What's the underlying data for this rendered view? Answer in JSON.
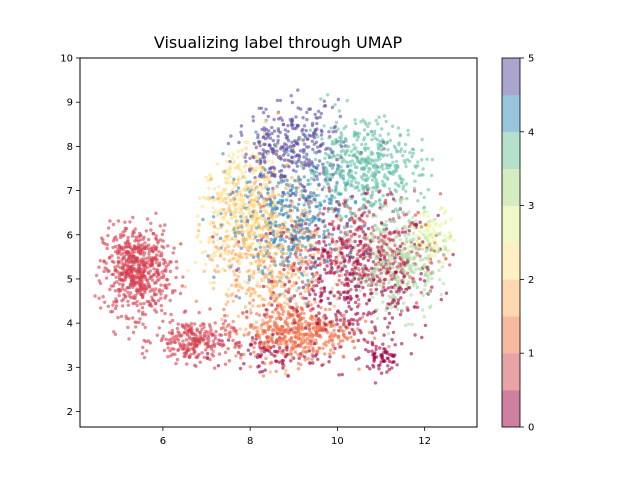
{
  "chart_data": {
    "type": "scatter",
    "title": "Visualizing label through UMAP",
    "xlabel": "",
    "ylabel": "",
    "xlim": [
      4.1,
      13.2
    ],
    "ylim": [
      1.65,
      10.0
    ],
    "xticks": [
      6,
      8,
      10,
      12
    ],
    "yticks": [
      2,
      3,
      4,
      5,
      6,
      7,
      8,
      9,
      10
    ],
    "grid": false,
    "marker_alpha": 0.6,
    "colorbar": {
      "colormap": "Spectral",
      "range": [
        0,
        5
      ],
      "ticks": [
        0,
        1,
        2,
        3,
        4,
        5
      ],
      "levels": 10,
      "band_colors": [
        "#cf7fa0",
        "#e8a3a6",
        "#f5baa0",
        "#fdd7b0",
        "#fdf0c3",
        "#f1f7c6",
        "#d4ecc0",
        "#b5e0cc",
        "#97c5db",
        "#aaa5cf"
      ]
    },
    "clusters": [
      {
        "label": 0,
        "color": "#9e0142",
        "center": [
          10.4,
          5.0
        ],
        "spread": [
          1.7,
          1.5
        ],
        "count": 500
      },
      {
        "label": 0,
        "color": "#9e0142",
        "center": [
          11.0,
          3.2
        ],
        "spread": [
          0.4,
          0.25
        ],
        "count": 60
      },
      {
        "label": 0,
        "color": "#9e0142",
        "center": [
          8.4,
          3.3
        ],
        "spread": [
          1.2,
          0.5
        ],
        "count": 80
      },
      {
        "label": 1,
        "color": "#d53e4f",
        "center": [
          5.4,
          5.2
        ],
        "spread": [
          0.7,
          0.9
        ],
        "count": 600
      },
      {
        "label": 1,
        "color": "#d53e4f",
        "center": [
          6.7,
          3.6
        ],
        "spread": [
          0.8,
          0.45
        ],
        "count": 250
      },
      {
        "label": 1,
        "color": "#d53e4f",
        "center": [
          10.6,
          5.6
        ],
        "spread": [
          1.6,
          1.2
        ],
        "count": 300
      },
      {
        "label": 2,
        "color": "#f46d43",
        "center": [
          9.0,
          3.8
        ],
        "spread": [
          1.2,
          0.6
        ],
        "count": 450
      },
      {
        "label": 2,
        "color": "#fdae61",
        "center": [
          8.4,
          5.6
        ],
        "spread": [
          1.2,
          1.6
        ],
        "count": 500
      },
      {
        "label": 3,
        "color": "#fee08b",
        "center": [
          7.9,
          6.6
        ],
        "spread": [
          1.0,
          1.3
        ],
        "count": 450
      },
      {
        "label": 3,
        "color": "#abdda4",
        "center": [
          11.4,
          5.3
        ],
        "spread": [
          1.0,
          1.0
        ],
        "count": 350
      },
      {
        "label": 3,
        "color": "#e6f598",
        "center": [
          12.2,
          6.0
        ],
        "spread": [
          0.5,
          0.5
        ],
        "count": 100
      },
      {
        "label": 4,
        "color": "#66c2a5",
        "center": [
          10.6,
          7.5
        ],
        "spread": [
          1.2,
          1.0
        ],
        "count": 500
      },
      {
        "label": 4,
        "color": "#3288bd",
        "center": [
          9.0,
          6.3
        ],
        "spread": [
          1.4,
          1.3
        ],
        "count": 400
      },
      {
        "label": 5,
        "color": "#5e4fa2",
        "center": [
          8.9,
          7.9
        ],
        "spread": [
          1.1,
          1.0
        ],
        "count": 350
      }
    ]
  }
}
